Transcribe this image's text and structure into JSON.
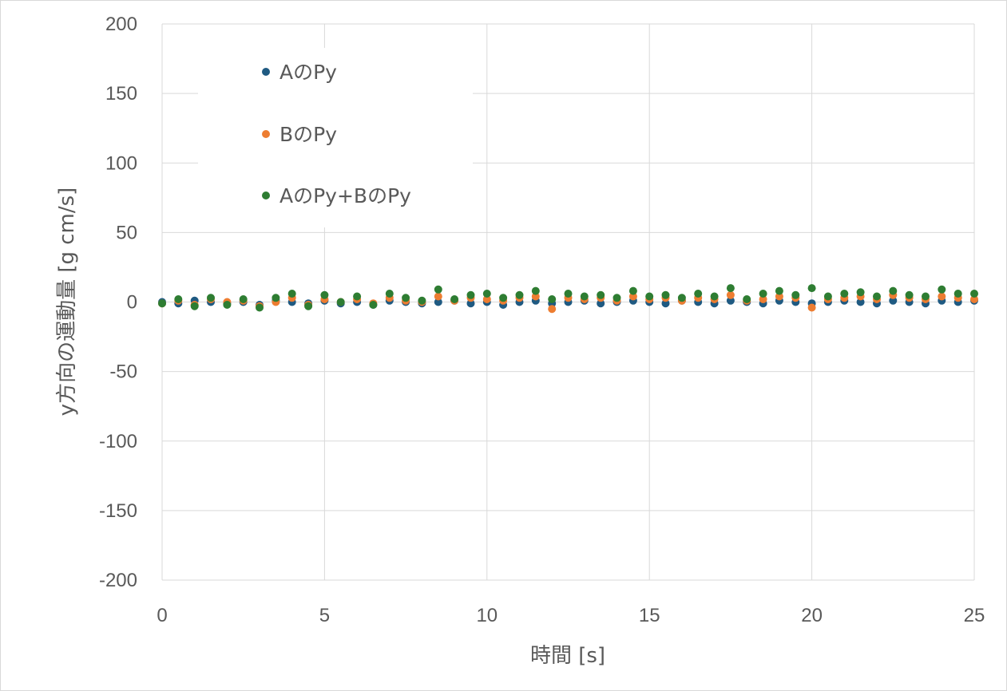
{
  "chart_data": {
    "type": "scatter",
    "title": "",
    "xlabel": "時間 [s]",
    "ylabel": "y方向の運動量 [g cm/s]",
    "xlim": [
      0,
      25
    ],
    "ylim": [
      -200,
      200
    ],
    "x_ticks": [
      "0",
      "5",
      "10",
      "15",
      "20",
      "25"
    ],
    "y_ticks": [
      "200",
      "150",
      "100",
      "50",
      "0",
      "-50",
      "-100",
      "-150",
      "-200"
    ],
    "grid": true,
    "legend_position": "top-left",
    "series": [
      {
        "name": "AのPy",
        "color": "#1f5a82",
        "x": [
          0,
          0.5,
          1,
          1.5,
          2,
          2.5,
          3,
          3.5,
          4,
          4.5,
          5,
          5.5,
          6,
          6.5,
          7,
          7.5,
          8,
          8.5,
          9,
          9.5,
          10,
          10.5,
          11,
          11.5,
          12,
          12.5,
          13,
          13.5,
          14,
          14.5,
          15,
          15.5,
          16,
          16.5,
          17,
          17.5,
          18,
          18.5,
          19,
          19.5,
          20,
          20.5,
          21,
          21.5,
          22,
          22.5,
          23,
          23.5,
          24,
          24.5,
          25
        ],
        "y": [
          0,
          -1,
          1,
          0,
          -1,
          0,
          -2,
          1,
          0,
          -1,
          1,
          -1,
          0,
          -2,
          1,
          0,
          -1,
          0,
          1,
          -1,
          0,
          -2,
          0,
          1,
          -1,
          0,
          1,
          -1,
          0,
          1,
          0,
          -1,
          1,
          0,
          -1,
          1,
          0,
          -1,
          1,
          0,
          -1,
          0,
          1,
          0,
          -1,
          1,
          0,
          -1,
          1,
          0,
          1
        ]
      },
      {
        "name": "BのPy",
        "color": "#ed7d31",
        "x": [
          0,
          0.5,
          1,
          1.5,
          2,
          2.5,
          3,
          3.5,
          4,
          4.5,
          5,
          5.5,
          6,
          6.5,
          7,
          7.5,
          8,
          8.5,
          9,
          9.5,
          10,
          10.5,
          11,
          11.5,
          12,
          12.5,
          13,
          13.5,
          14,
          14.5,
          15,
          15.5,
          16,
          16.5,
          17,
          17.5,
          18,
          18.5,
          19,
          19.5,
          20,
          20.5,
          21,
          21.5,
          22,
          22.5,
          23,
          23.5,
          24,
          24.5,
          25
        ],
        "y": [
          -1,
          1,
          -2,
          2,
          0,
          1,
          -3,
          0,
          3,
          -2,
          2,
          0,
          2,
          -1,
          3,
          1,
          0,
          4,
          1,
          3,
          2,
          1,
          3,
          4,
          -5,
          3,
          2,
          3,
          1,
          4,
          2,
          3,
          1,
          3,
          2,
          5,
          1,
          2,
          4,
          3,
          -4,
          2,
          3,
          4,
          2,
          5,
          3,
          2,
          4,
          3,
          2
        ]
      },
      {
        "name": "AのPy+BのPy",
        "color": "#2e7d32",
        "x": [
          0,
          0.5,
          1,
          1.5,
          2,
          2.5,
          3,
          3.5,
          4,
          4.5,
          5,
          5.5,
          6,
          6.5,
          7,
          7.5,
          8,
          8.5,
          9,
          9.5,
          10,
          10.5,
          11,
          11.5,
          12,
          12.5,
          13,
          13.5,
          14,
          14.5,
          15,
          15.5,
          16,
          16.5,
          17,
          17.5,
          18,
          18.5,
          19,
          19.5,
          20,
          20.5,
          21,
          21.5,
          22,
          22.5,
          23,
          23.5,
          24,
          24.5,
          25
        ],
        "y": [
          -1,
          2,
          -3,
          3,
          -2,
          2,
          -4,
          3,
          6,
          -3,
          5,
          0,
          4,
          -2,
          6,
          3,
          1,
          9,
          2,
          5,
          6,
          3,
          5,
          8,
          2,
          6,
          4,
          5,
          3,
          8,
          4,
          5,
          3,
          6,
          4,
          10,
          2,
          6,
          8,
          5,
          10,
          4,
          6,
          7,
          4,
          8,
          5,
          4,
          9,
          6,
          6
        ]
      }
    ]
  }
}
